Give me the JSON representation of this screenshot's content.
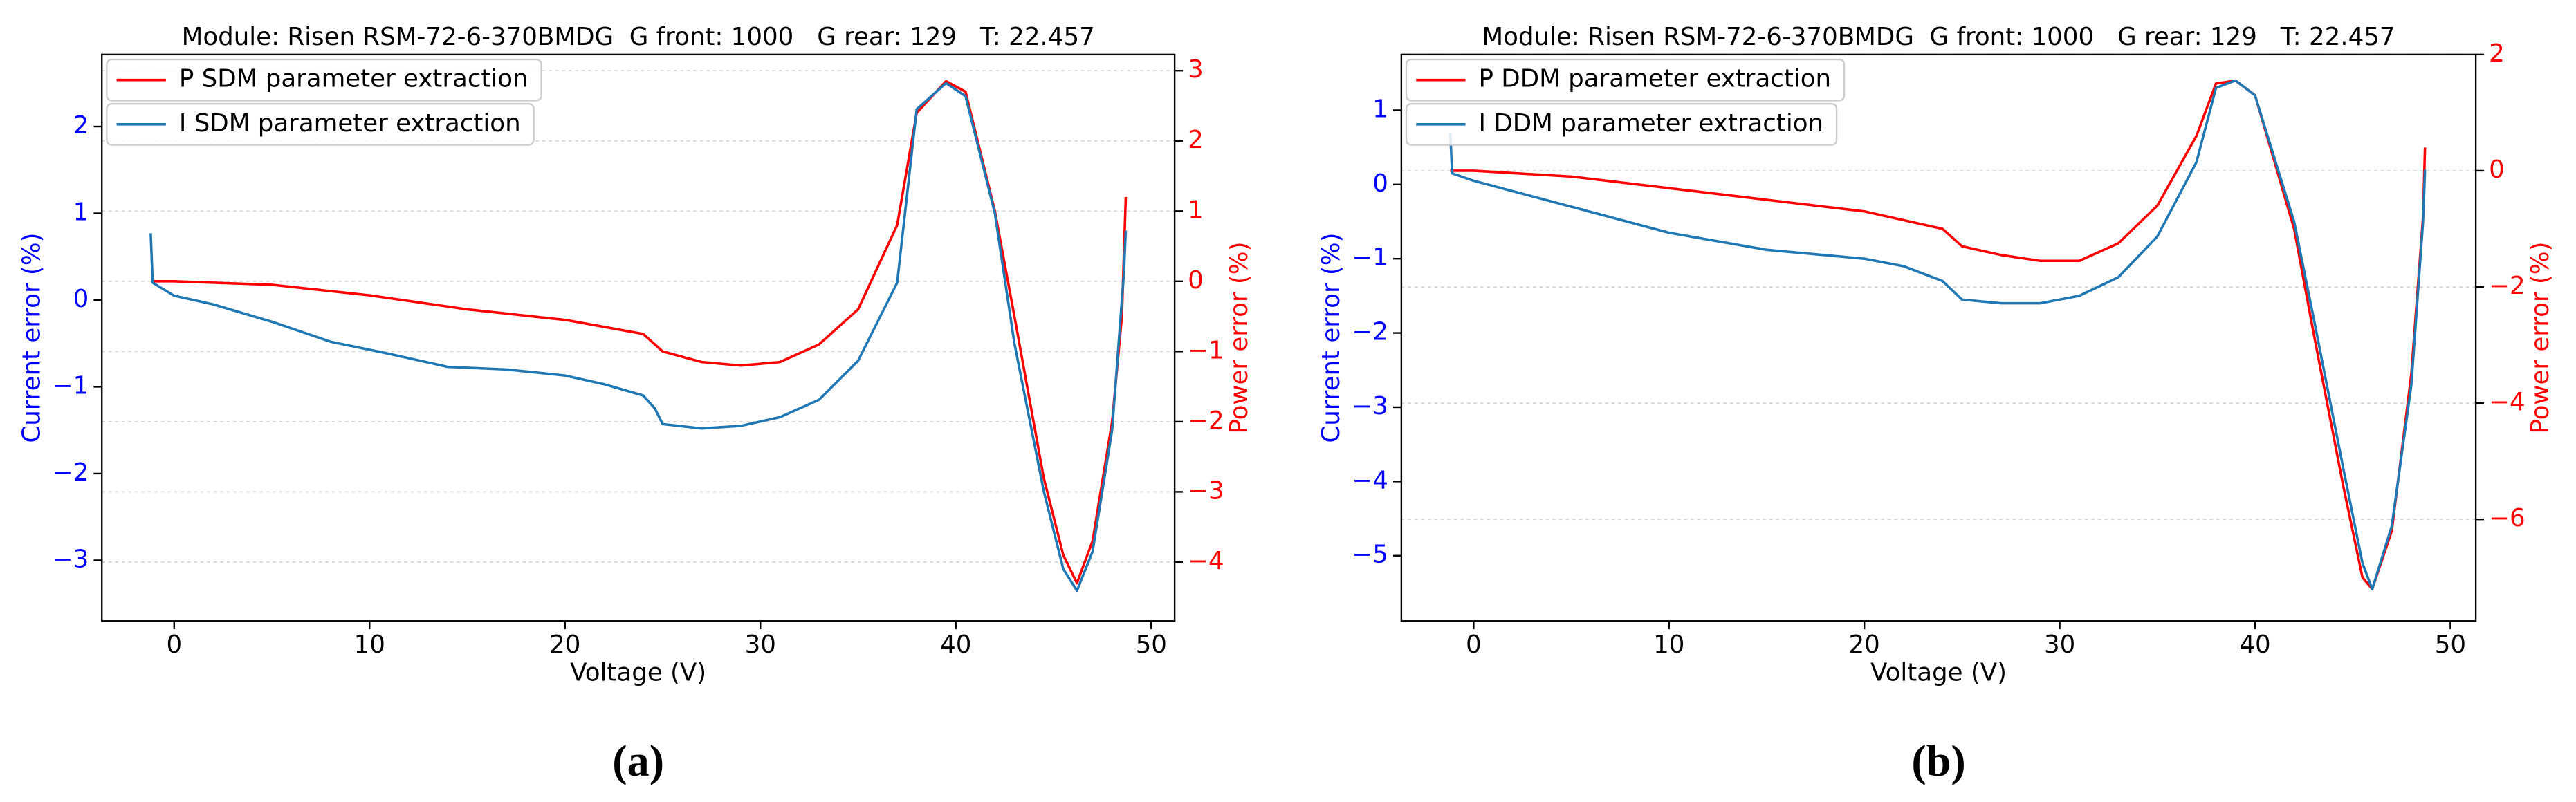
{
  "chart_data": [
    {
      "type": "line",
      "title": "Module: Risen RSM-72-6-370BMDG  G front: 1000   G rear: 129   T: 22.457",
      "caption": "(a)",
      "xlabel": "Voltage (V)",
      "ylabel": "Current error (%)",
      "y2label": "Power error (%)",
      "ylabel_color": "#0000ff",
      "y2label_color": "#ff0000",
      "xlim": [
        -3.7,
        51.2
      ],
      "ylim": [
        -3.7,
        2.83
      ],
      "y2lim": [
        -4.84,
        3.23
      ],
      "xticks": [
        0,
        10,
        20,
        30,
        40,
        50
      ],
      "yticks": [
        {
          "value": -3,
          "label": "−3"
        },
        {
          "value": -2,
          "label": "−2"
        },
        {
          "value": -1,
          "label": "−1"
        },
        0,
        1,
        2
      ],
      "y2ticks": [
        {
          "value": -4,
          "label": "−4"
        },
        {
          "value": -3,
          "label": "−3"
        },
        {
          "value": -2,
          "label": "−2"
        },
        {
          "value": -1,
          "label": "−1"
        },
        0,
        1,
        2,
        3
      ],
      "grid": "y2",
      "legend": "upper left",
      "series": [
        {
          "name": "P SDM parameter extraction",
          "color": "#ff0000",
          "axis": "y2",
          "x": [
            -1.1,
            0,
            5,
            10,
            15,
            20,
            24,
            25,
            27,
            29,
            31,
            33,
            35,
            37,
            38,
            39.5,
            40.5,
            42,
            43,
            44.5,
            45.5,
            46.2,
            47,
            48,
            48.5,
            48.7
          ],
          "values": [
            0.0,
            0.0,
            -0.05,
            -0.2,
            -0.4,
            -0.55,
            -0.75,
            -1.0,
            -1.15,
            -1.2,
            -1.15,
            -0.9,
            -0.4,
            0.8,
            2.4,
            2.85,
            2.7,
            1.0,
            -0.5,
            -2.8,
            -3.9,
            -4.3,
            -3.7,
            -2.0,
            -0.5,
            1.2
          ]
        },
        {
          "name": "I SDM parameter extraction",
          "color": "#1f77b4",
          "x": [
            -1.2,
            -1.1,
            0,
            2,
            5,
            8,
            11,
            14,
            17,
            20,
            22,
            24,
            24.6,
            25,
            27,
            29,
            31,
            33,
            35,
            37,
            38,
            39.5,
            40.5,
            42,
            43,
            44.5,
            45.5,
            46.2,
            47,
            48,
            48.6,
            48.7
          ],
          "values": [
            0.77,
            0.2,
            0.05,
            -0.05,
            -0.25,
            -0.48,
            -0.62,
            -0.77,
            -0.8,
            -0.87,
            -0.97,
            -1.1,
            -1.25,
            -1.43,
            -1.48,
            -1.45,
            -1.35,
            -1.15,
            -0.7,
            0.2,
            2.2,
            2.5,
            2.35,
            1.0,
            -0.5,
            -2.2,
            -3.1,
            -3.35,
            -2.9,
            -1.5,
            0.3,
            0.8
          ]
        }
      ]
    },
    {
      "type": "line",
      "title": "Module: Risen RSM-72-6-370BMDG  G front: 1000   G rear: 129   T: 22.457",
      "caption": "(b)",
      "xlabel": "Voltage (V)",
      "ylabel": "Current error (%)",
      "y2label": "Power error (%)",
      "ylabel_color": "#0000ff",
      "y2label_color": "#ff0000",
      "xlim": [
        -3.7,
        51.3
      ],
      "ylim": [
        -5.88,
        1.75
      ],
      "y2lim": [
        -7.75,
        2.0
      ],
      "xticks": [
        0,
        10,
        20,
        30,
        40,
        50
      ],
      "yticks": [
        {
          "value": -5,
          "label": "−5"
        },
        {
          "value": -4,
          "label": "−4"
        },
        {
          "value": -3,
          "label": "−3"
        },
        {
          "value": -2,
          "label": "−2"
        },
        {
          "value": -1,
          "label": "−1"
        },
        0,
        1
      ],
      "y2ticks": [
        {
          "value": -6,
          "label": "−6"
        },
        {
          "value": -4,
          "label": "−4"
        },
        {
          "value": -2,
          "label": "−2"
        },
        0,
        2
      ],
      "grid": "y2",
      "legend": "upper left",
      "series": [
        {
          "name": "P DDM parameter extraction",
          "color": "#ff0000",
          "axis": "y2",
          "x": [
            -1.2,
            0,
            5,
            10,
            15,
            20,
            24,
            25,
            27,
            29,
            31,
            33,
            35,
            37,
            38,
            39,
            40,
            42,
            43,
            44.5,
            45.5,
            46,
            47,
            48,
            48.6,
            48.7
          ],
          "values": [
            0.0,
            0.0,
            -0.1,
            -0.3,
            -0.5,
            -0.7,
            -1.0,
            -1.3,
            -1.45,
            -1.55,
            -1.55,
            -1.25,
            -0.6,
            0.6,
            1.5,
            1.55,
            1.3,
            -1.0,
            -2.8,
            -5.4,
            -7.0,
            -7.2,
            -6.2,
            -3.5,
            -0.8,
            0.4
          ]
        },
        {
          "name": "I DDM parameter extraction",
          "color": "#1f77b4",
          "x": [
            -1.2,
            -1.1,
            0,
            5,
            10,
            15,
            20,
            22,
            24,
            25,
            27,
            29,
            31,
            33,
            35,
            37,
            38,
            39,
            40,
            42,
            43,
            44.5,
            45.5,
            46,
            47,
            48,
            48.6,
            48.7
          ],
          "values": [
            0.7,
            0.15,
            0.05,
            -0.3,
            -0.65,
            -0.88,
            -1.0,
            -1.1,
            -1.3,
            -1.55,
            -1.6,
            -1.6,
            -1.5,
            -1.25,
            -0.7,
            0.3,
            1.3,
            1.4,
            1.2,
            -0.5,
            -1.8,
            -3.8,
            -5.1,
            -5.45,
            -4.6,
            -2.7,
            -0.5,
            0.2
          ]
        }
      ]
    }
  ]
}
